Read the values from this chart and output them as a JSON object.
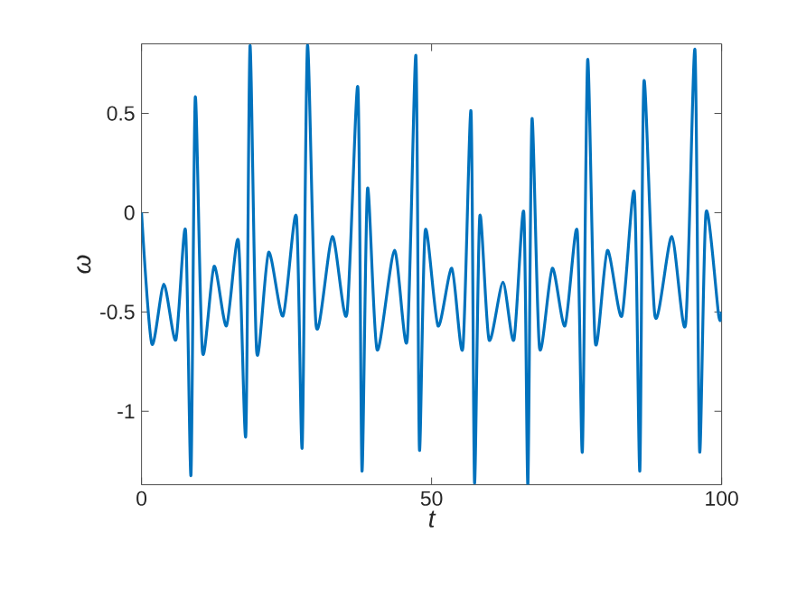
{
  "chart_data": {
    "type": "line",
    "xlabel": "t",
    "ylabel": "ω",
    "xlim": [
      0,
      100
    ],
    "ylim": [
      -1.37,
      0.85
    ],
    "xticks": [
      0,
      50,
      100
    ],
    "yticks": [
      -1,
      -0.5,
      0,
      0.5
    ],
    "grid": false,
    "series": [
      {
        "color": "#0072bd",
        "x": [
          0,
          1.77,
          3.85,
          5.93,
          7.59,
          8.53,
          9.26,
          10.5,
          12.5,
          14.65,
          16.7,
          17.98,
          18.7,
          19.85,
          21.9,
          24.4,
          26.7,
          27.7,
          28.6,
          30.1,
          32.9,
          35.4,
          37.3,
          38.0,
          38.95,
          40.6,
          43.6,
          45.8,
          47.3,
          47.9,
          48.9,
          51.1,
          53.5,
          55.4,
          56.8,
          57.4,
          58.3,
          59.9,
          62.3,
          64.2,
          65.9,
          66.6,
          67.3,
          68.6,
          70.8,
          73.0,
          75.1,
          76.0,
          76.9,
          78.2,
          80.3,
          82.8,
          84.96,
          85.9,
          86.6,
          88.5,
          91.4,
          93.8,
          95.4,
          96.2,
          97.3,
          99.5,
          100
        ],
        "values": [
          0,
          -0.66,
          -0.36,
          -0.64,
          -0.09,
          -1.32,
          0.58,
          -0.7,
          -0.27,
          -0.57,
          -0.14,
          -1.12,
          0.84,
          -0.7,
          -0.2,
          -0.52,
          -0.02,
          -1.18,
          0.84,
          -0.57,
          -0.12,
          -0.51,
          0.63,
          -1.3,
          0.12,
          -0.69,
          -0.19,
          -0.64,
          0.79,
          -1.19,
          -0.09,
          -0.57,
          -0.28,
          -0.68,
          0.51,
          -1.36,
          -0.02,
          -0.64,
          -0.35,
          -0.64,
          0,
          -1.37,
          0.47,
          -0.68,
          -0.28,
          -0.57,
          -0.09,
          -1.2,
          0.77,
          -0.65,
          -0.19,
          -0.52,
          0.1,
          -1.3,
          0.66,
          -0.52,
          -0.12,
          -0.56,
          0.82,
          -1.2,
          0,
          -0.52,
          -0.5
        ]
      }
    ]
  }
}
